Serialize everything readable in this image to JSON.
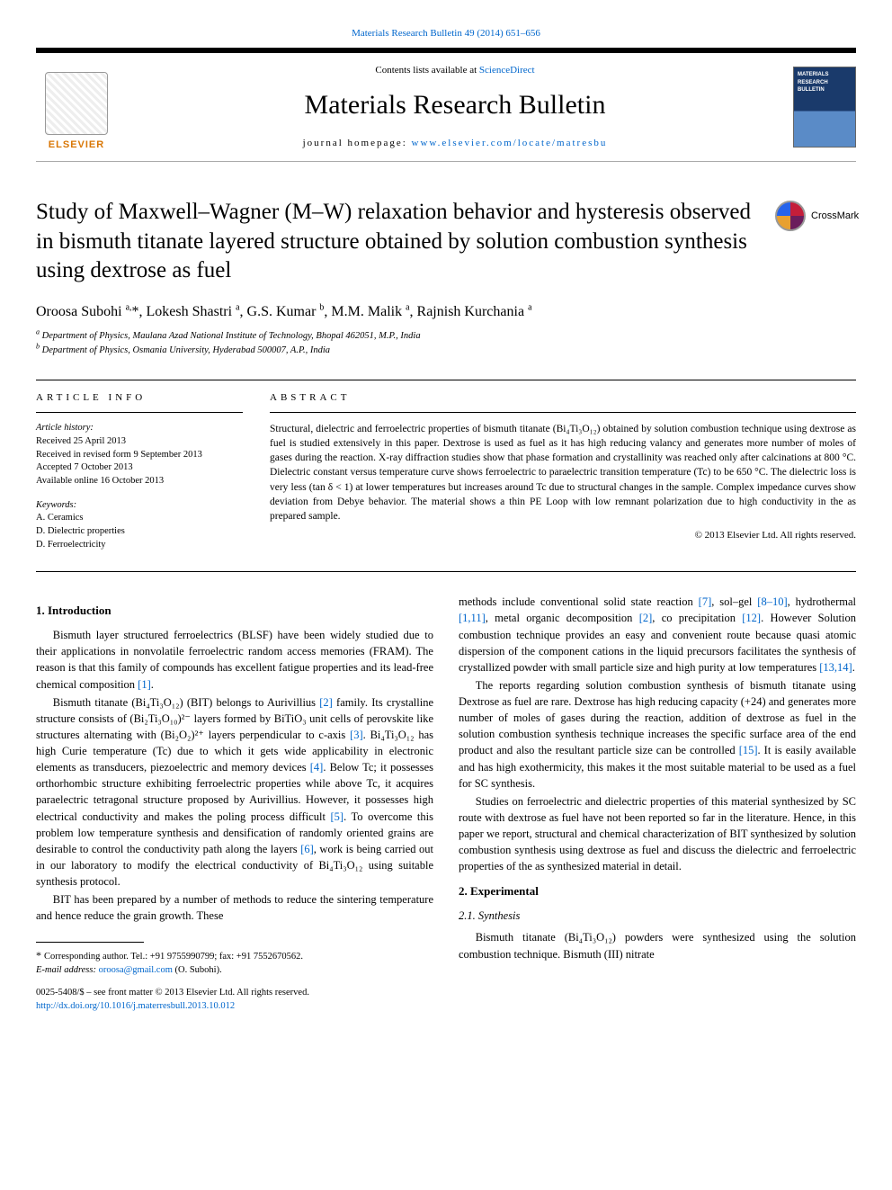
{
  "top_link": {
    "label": "Materials Research Bulletin 49 (2014) 651–656"
  },
  "header": {
    "contents_prefix": "Contents lists available at ",
    "contents_link": "ScienceDirect",
    "journal": "Materials Research Bulletin",
    "homepage_prefix": "journal homepage: ",
    "homepage_link": "www.elsevier.com/locate/matresbu",
    "elsevier": "ELSEVIER",
    "cover_text": "MATERIALS RESEARCH BULLETIN"
  },
  "article": {
    "title": "Study of Maxwell–Wagner (M–W) relaxation behavior and hysteresis observed in bismuth titanate layered structure obtained by solution combustion synthesis using dextrose as fuel",
    "crossmark": "CrossMark",
    "authors_html": "Oroosa Subohi <sup>a,</sup>*, Lokesh Shastri <sup>a</sup>, G.S. Kumar <sup>b</sup>, M.M. Malik <sup>a</sup>, Rajnish Kurchania <sup>a</sup>",
    "affiliations": [
      {
        "sup": "a",
        "text": "Department of Physics, Maulana Azad National Institute of Technology, Bhopal 462051, M.P., India"
      },
      {
        "sup": "b",
        "text": "Department of Physics, Osmania University, Hyderabad 500007, A.P., India"
      }
    ]
  },
  "article_info": {
    "heading": "ARTICLE INFO",
    "history_title": "Article history:",
    "history": [
      "Received 25 April 2013",
      "Received in revised form 9 September 2013",
      "Accepted 7 October 2013",
      "Available online 16 October 2013"
    ],
    "keywords_title": "Keywords:",
    "keywords": [
      "A. Ceramics",
      "D. Dielectric properties",
      "D. Ferroelectricity"
    ]
  },
  "abstract": {
    "heading": "ABSTRACT",
    "text": "Structural, dielectric and ferroelectric properties of bismuth titanate (Bi₄Ti₃O₁₂) obtained by solution combustion technique using dextrose as fuel is studied extensively in this paper. Dextrose is used as fuel as it has high reducing valancy and generates more number of moles of gases during the reaction. X-ray diffraction studies show that phase formation and crystallinity was reached only after calcinations at 800 °C. Dielectric constant versus temperature curve shows ferroelectric to paraelectric transition temperature (Tc) to be 650 °C. The dielectric loss is very less (tan δ < 1) at lower temperatures but increases around Tc due to structural changes in the sample. Complex impedance curves show deviation from Debye behavior. The material shows a thin PE Loop with low remnant polarization due to high conductivity in the as prepared sample.",
    "copyright": "© 2013 Elsevier Ltd. All rights reserved."
  },
  "body": {
    "s1_title": "1. Introduction",
    "p1": "Bismuth layer structured ferroelectrics (BLSF) have been widely studied due to their applications in nonvolatile ferroelectric random access memories (FRAM). The reason is that this family of compounds has excellent fatigue properties and its lead-free chemical composition ",
    "ref1": "[1]",
    "p1_end": ".",
    "p2a": "Bismuth titanate (Bi₄Ti₃O₁₂) (BIT) belongs to Aurivillius ",
    "ref2": "[2]",
    "p2b": " family. Its crystalline structure consists of (Bi₂Ti₃O₁₀)²⁻ layers formed by BiTiO₃ unit cells of perovskite like structures alternating with (Bi₂O₂)²⁺ layers perpendicular to c-axis ",
    "ref3": "[3]",
    "p2c": ". Bi₄Ti₃O₁₂ has high Curie temperature (Tc) due to which it gets wide applicability in electronic elements as transducers, piezoelectric and memory devices ",
    "ref4": "[4]",
    "p2d": ". Below Tc; it possesses orthorhombic structure exhibiting ferroelectric properties while above Tc, it acquires paraelectric tetragonal structure proposed by Aurivillius. However, it possesses high electrical conductivity and makes the poling process difficult ",
    "ref5": "[5]",
    "p2e": ". To overcome this problem low temperature synthesis and densification of randomly oriented grains are desirable to control the conductivity path along the layers ",
    "ref6": "[6]",
    "p2f": ", work is being carried out in our laboratory to modify the electrical conductivity of Bi₄Ti₃O₁₂ using suitable synthesis protocol.",
    "p3a": "BIT has been prepared by a number of methods to reduce the sintering temperature and hence reduce the grain growth. These",
    "p3b": "methods include conventional solid state reaction ",
    "ref7": "[7]",
    "p3c": ", sol–gel ",
    "ref8_10": "[8–10]",
    "p3d": ", hydrothermal ",
    "ref1_11": "[1,11]",
    "p3e": ", metal organic decomposition ",
    "ref2b": "[2]",
    "p3f": ", co precipitation ",
    "ref12": "[12]",
    "p3g": ". However Solution combustion technique provides an easy and convenient route because quasi atomic dispersion of the component cations in the liquid precursors facilitates the synthesis of crystallized powder with small particle size and high purity at low temperatures ",
    "ref13_14": "[13,14]",
    "p3h": ".",
    "p4a": "The reports regarding solution combustion synthesis of bismuth titanate using Dextrose as fuel are rare. Dextrose has high reducing capacity (+24) and generates more number of moles of gases during the reaction, addition of dextrose as fuel in the solution combustion synthesis technique increases the specific surface area of the end product and also the resultant particle size can be controlled ",
    "ref15": "[15]",
    "p4b": ". It is easily available and has high exothermicity, this makes it the most suitable material to be used as a fuel for SC synthesis.",
    "p5": "Studies on ferroelectric and dielectric properties of this material synthesized by SC route with dextrose as fuel have not been reported so far in the literature. Hence, in this paper we report, structural and chemical characterization of BIT synthesized by solution combustion synthesis using dextrose as fuel and discuss the dielectric and ferroelectric properties of the as synthesized material in detail.",
    "s2_title": "2. Experimental",
    "s21_title": "2.1. Synthesis",
    "p6": "Bismuth titanate (Bi₄Ti₃O₁₂) powders were synthesized using the solution combustion technique. Bismuth (III) nitrate"
  },
  "footer": {
    "corresponding": "Corresponding author. Tel.: +91 9755990799; fax: +91 7552670562.",
    "email_label": "E-mail address: ",
    "email": "oroosa@gmail.com",
    "email_tail": " (O. Subohi).",
    "issn": "0025-5408/$ – see front matter © 2013 Elsevier Ltd. All rights reserved.",
    "doi": "http://dx.doi.org/10.1016/j.materresbull.2013.10.012"
  },
  "colors": {
    "link": "#0066cc",
    "elsevier": "#d97706",
    "cover_top": "#1a3a6b",
    "cover_bottom": "#5a8bc7"
  }
}
